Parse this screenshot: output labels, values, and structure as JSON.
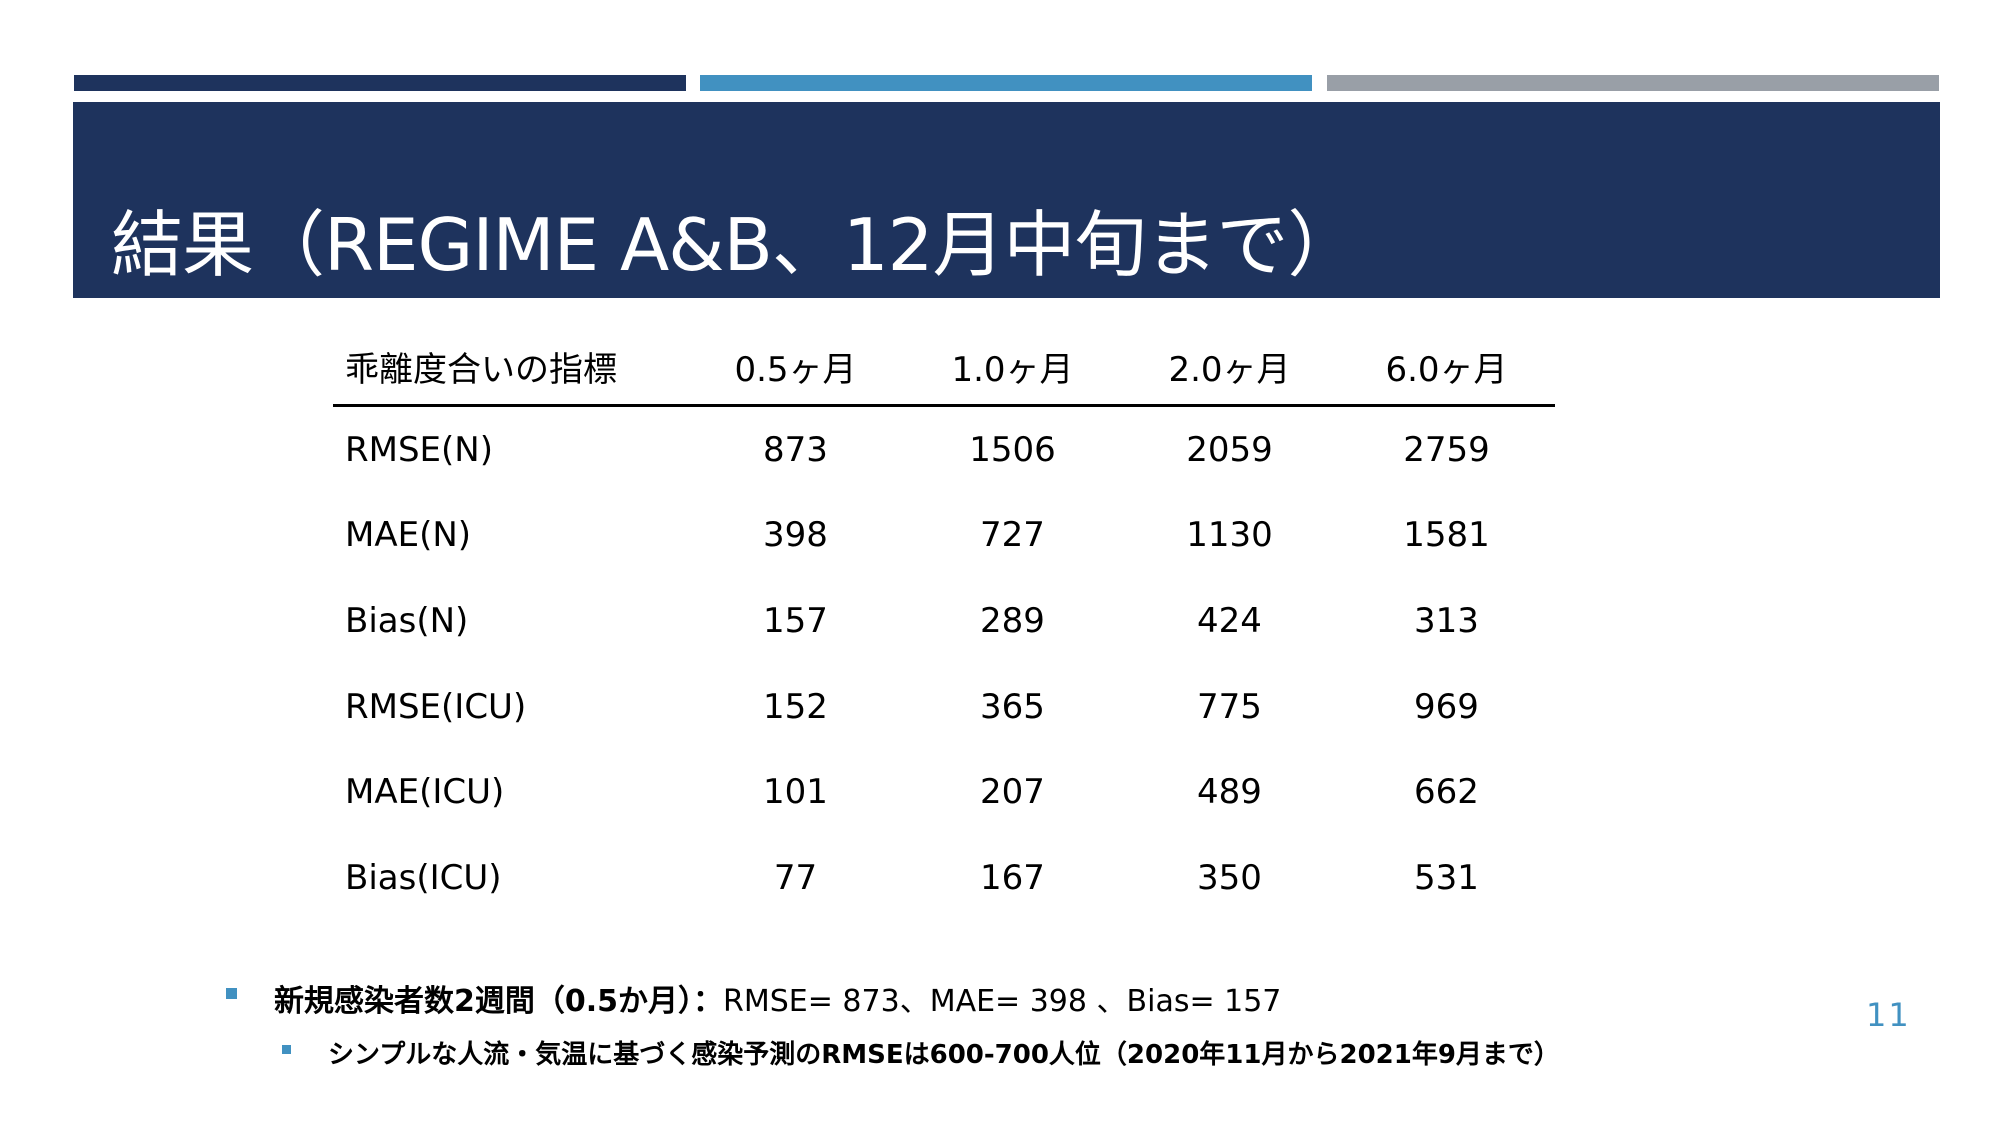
{
  "slide": {
    "title": "結果（REGIME A&B、12月中旬まで）",
    "accent_colors": {
      "navy": "#1e335d",
      "blue": "#4191c1",
      "gray": "#999fa7"
    },
    "page_number": "11"
  },
  "table": {
    "headers": [
      "乖離度合いの指標",
      "0.5ヶ月",
      "1.0ヶ月",
      "2.0ヶ月",
      "6.0ヶ月"
    ],
    "rows": [
      {
        "label": "RMSE(N)",
        "values": [
          "873",
          "1506",
          "2059",
          "2759"
        ]
      },
      {
        "label": "MAE(N)",
        "values": [
          "398",
          "727",
          "1130",
          "1581"
        ]
      },
      {
        "label": "Bias(N)",
        "values": [
          "157",
          "289",
          "424",
          "313"
        ]
      },
      {
        "label": "RMSE(ICU)",
        "values": [
          "152",
          "365",
          "775",
          "969"
        ]
      },
      {
        "label": "MAE(ICU)",
        "values": [
          "101",
          "207",
          "489",
          "662"
        ]
      },
      {
        "label": "Bias(ICU)",
        "values": [
          "77",
          "167",
          "350",
          "531"
        ]
      }
    ]
  },
  "bullets": {
    "main_lead": "新規感染者数2週間（0.5か月）：",
    "main_rest": "RMSE= 873、MAE= 398 、Bias= 157",
    "sub": "シンプルな人流・気温に基づく感染予測のRMSEは600-700人位（2020年11月から2021年9月まで）"
  }
}
